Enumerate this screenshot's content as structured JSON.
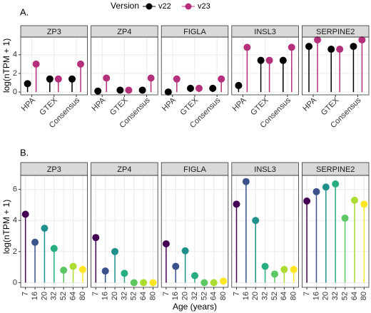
{
  "chart_data": [
    {
      "type": "lollipop",
      "tag": "A.",
      "legend_title": "Version",
      "ylabel": "log(nTPM + 1)",
      "facets": [
        "ZP3",
        "ZP4",
        "FIGLA",
        "INSL3",
        "SERPINE2"
      ],
      "categories": [
        "HPA",
        "GTEX",
        "Consensus"
      ],
      "series": [
        {
          "name": "v22",
          "color": "#000000",
          "values": [
            [
              0.9,
              1.4,
              1.4
            ],
            [
              0.1,
              0.2,
              0.2
            ],
            [
              0.0,
              0.4,
              0.4
            ],
            [
              0.7,
              3.4,
              3.4
            ],
            [
              4.9,
              4.6,
              4.9
            ]
          ]
        },
        {
          "name": "v23",
          "color": "#b5307a",
          "values": [
            [
              3.0,
              1.4,
              3.0
            ],
            [
              1.5,
              0.2,
              1.5
            ],
            [
              1.4,
              0.4,
              1.4
            ],
            [
              4.8,
              3.4,
              4.8
            ],
            [
              5.6,
              4.6,
              5.6
            ]
          ]
        }
      ],
      "ylim": [
        -0.3,
        5.9
      ],
      "yticks": [
        0,
        2,
        4
      ],
      "grid": true
    },
    {
      "type": "lollipop",
      "tag": "B.",
      "ylabel": "log(nTPM + 1)",
      "xlabel": "Age (years)",
      "facets": [
        "ZP3",
        "ZP4",
        "FIGLA",
        "INSL3",
        "SERPINE2"
      ],
      "categories": [
        "7",
        "16",
        "20",
        "32",
        "52",
        "64",
        "80"
      ],
      "colors": [
        "#440154",
        "#3b528b",
        "#21908c",
        "#27ad81",
        "#5dc863",
        "#aadc32",
        "#fde725"
      ],
      "series": [
        {
          "values": [
            [
              4.4,
              2.6,
              3.5,
              2.2,
              0.8,
              1.05,
              0.85
            ],
            [
              2.9,
              0.75,
              2.0,
              0.6,
              0.0,
              0.0,
              0.0
            ],
            [
              2.5,
              1.05,
              2.05,
              0.45,
              0.0,
              0.0,
              0.1
            ],
            [
              5.05,
              6.5,
              4.0,
              1.05,
              0.55,
              0.85,
              0.85
            ],
            [
              5.25,
              5.85,
              6.15,
              6.35,
              4.15,
              5.3,
              5.05
            ]
          ]
        }
      ],
      "ylim": [
        -0.3,
        6.9
      ],
      "yticks": [
        0,
        2,
        4,
        6
      ],
      "grid": true
    }
  ]
}
